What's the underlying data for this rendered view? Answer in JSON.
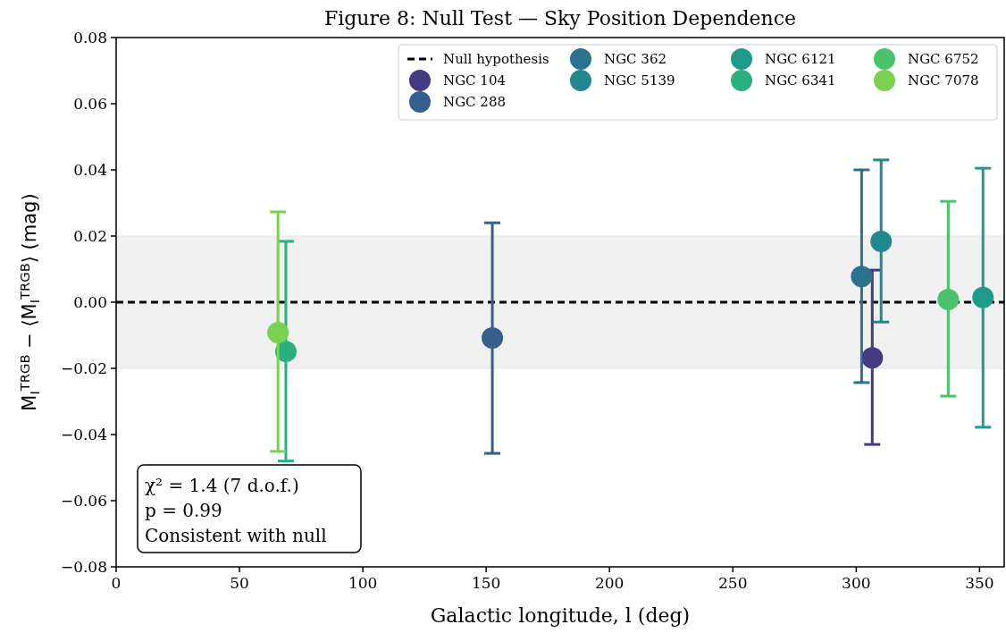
{
  "chart_data": {
    "type": "scatter",
    "title": "Figure 8: Null Test — Sky Position Dependence",
    "xlabel": "Galactic longitude, l (deg)",
    "ylabel": "M$_{I}$$^{TRGB}$ − ⟨M$_{I}$$^{TRGB}$⟩ (mag)",
    "xlim": [
      0,
      360
    ],
    "xticks": [
      0,
      50,
      100,
      150,
      200,
      250,
      300,
      350
    ],
    "ylim": [
      -0.08,
      0.08
    ],
    "yticks": [
      {
        "value": -0.08,
        "label": "−0.08"
      },
      {
        "value": -0.06,
        "label": "−0.06"
      },
      {
        "value": -0.04,
        "label": "−0.04"
      },
      {
        "value": -0.02,
        "label": "−0.02"
      },
      {
        "value": 0,
        "label": "0.00"
      },
      {
        "value": 0.02,
        "label": "0.02"
      },
      {
        "value": 0.04,
        "label": "0.04"
      },
      {
        "value": 0.06,
        "label": "0.06"
      },
      {
        "value": 0.08,
        "label": "0.08"
      }
    ],
    "grid": false,
    "legend": "top right",
    "marker": "circle",
    "ref_lines": [
      {
        "axis": "y",
        "value": 0,
        "label": "Null hypothesis",
        "color": "#000000",
        "line_style": "dashed"
      }
    ],
    "bands": [
      {
        "axis": "y",
        "from": -0.02,
        "to": 0.02,
        "color": "#f0f0f0"
      }
    ],
    "series": [
      {
        "name": "NGC 104",
        "color": "#443983",
        "x": [
          306.5
        ],
        "values": [
          -0.0168
        ],
        "errors": [
          [
            -0.043,
            0.0097
          ]
        ]
      },
      {
        "name": "NGC 288",
        "color": "#355e8d",
        "x": [
          152.5
        ],
        "values": [
          -0.0108
        ],
        "errors": [
          [
            -0.0457,
            0.024
          ]
        ]
      },
      {
        "name": "NGC 362",
        "color": "#2c718e",
        "x": [
          302.2
        ],
        "values": [
          0.0078
        ],
        "errors": [
          [
            -0.0243,
            0.04
          ]
        ]
      },
      {
        "name": "NGC 5139",
        "color": "#21888d",
        "x": [
          310.1
        ],
        "values": [
          0.0184
        ],
        "errors": [
          [
            -0.006,
            0.043
          ]
        ]
      },
      {
        "name": "NGC 6121",
        "color": "#1f9a8a",
        "x": [
          351.4
        ],
        "values": [
          0.0014
        ],
        "errors": [
          [
            -0.0378,
            0.0405
          ]
        ]
      },
      {
        "name": "NGC 6341",
        "color": "#2ab07f",
        "x": [
          68.8
        ],
        "values": [
          -0.0149
        ],
        "errors": [
          [
            -0.048,
            0.0184
          ]
        ]
      },
      {
        "name": "NGC 6752",
        "color": "#4cc26c",
        "x": [
          337.3
        ],
        "values": [
          0.0008
        ],
        "errors": [
          [
            -0.0284,
            0.0305
          ]
        ]
      },
      {
        "name": "NGC 7078",
        "color": "#7ad151",
        "x": [
          65.6
        ],
        "values": [
          -0.0092
        ],
        "errors": [
          [
            -0.0451,
            0.0273
          ]
        ]
      }
    ],
    "annotations": [
      "χ² = 1.4 (7 d.o.f.)\np = 0.99\nConsistent with null"
    ]
  }
}
